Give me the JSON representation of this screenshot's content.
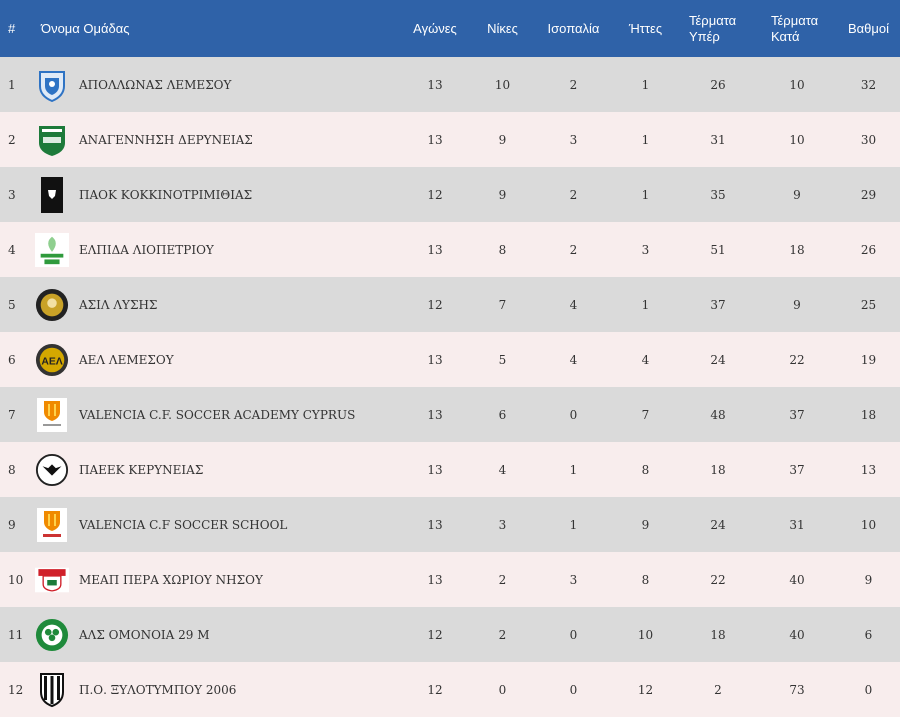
{
  "headers": {
    "pos": "#",
    "team": "Όνομα Ομάδας",
    "played": "Αγώνες",
    "wins": "Νίκες",
    "draws": "Ισοπαλία",
    "losses": "Ήττες",
    "gf": [
      "Τέρματα",
      "Υπέρ"
    ],
    "ga": [
      "Τέρματα",
      "Κατά"
    ],
    "points": "Βαθμοί"
  },
  "rows": [
    {
      "pos": "1",
      "team": "ΑΠΟΛΛΩΝΑΣ ΛΕΜΕΣΟΥ",
      "played": "13",
      "wins": "10",
      "draws": "2",
      "losses": "1",
      "gf": "26",
      "ga": "10",
      "points": "32",
      "logo": "apollon-crest-icon",
      "color": "#2e73c4"
    },
    {
      "pos": "2",
      "team": "ΑΝΑΓΕΝΝΗΣΗ ΔΕΡΥΝΕΙΑΣ",
      "played": "13",
      "wins": "9",
      "draws": "3",
      "losses": "1",
      "gf": "31",
      "ga": "10",
      "points": "30",
      "logo": "anagennisi-crest-icon",
      "color": "#1d7a3a"
    },
    {
      "pos": "3",
      "team": "ΠΑΟΚ ΚΟΚΚΙΝΟΤΡΙΜΙΘΙΑΣ",
      "played": "12",
      "wins": "9",
      "draws": "2",
      "losses": "1",
      "gf": "35",
      "ga": "9",
      "points": "29",
      "logo": "paok-crest-icon",
      "color": "#111111"
    },
    {
      "pos": "4",
      "team": "ΕΛΠΙΔΑ ΛΙΟΠΕΤΡΙΟΥ",
      "played": "13",
      "wins": "8",
      "draws": "2",
      "losses": "3",
      "gf": "51",
      "ga": "18",
      "points": "26",
      "logo": "elpida-crest-icon",
      "color": "#2f9a3c"
    },
    {
      "pos": "5",
      "team": "ΑΣΙΛ ΛΥΣΗΣ",
      "played": "12",
      "wins": "7",
      "draws": "4",
      "losses": "1",
      "gf": "37",
      "ga": "9",
      "points": "25",
      "logo": "asil-crest-icon",
      "color": "#c9a227"
    },
    {
      "pos": "6",
      "team": "ΑΕΛ ΛΕΜΕΣΟΥ",
      "played": "13",
      "wins": "5",
      "draws": "4",
      "losses": "4",
      "gf": "24",
      "ga": "22",
      "points": "19",
      "logo": "ael-crest-icon",
      "color": "#d4a800"
    },
    {
      "pos": "7",
      "team": "VALENCIA C.F. SOCCER ACADEMY CYPRUS",
      "played": "13",
      "wins": "6",
      "draws": "0",
      "losses": "7",
      "gf": "48",
      "ga": "37",
      "points": "18",
      "logo": "valencia-crest-icon",
      "color": "#f08a00"
    },
    {
      "pos": "8",
      "team": "ΠΑΕΕΚ ΚΕΡΥΝΕΙΑΣ",
      "played": "13",
      "wins": "4",
      "draws": "1",
      "losses": "8",
      "gf": "18",
      "ga": "37",
      "points": "13",
      "logo": "paeek-crest-icon",
      "color": "#111111"
    },
    {
      "pos": "9",
      "team": "VALENCIA C.F SOCCER SCHOOL",
      "played": "13",
      "wins": "3",
      "draws": "1",
      "losses": "9",
      "gf": "24",
      "ga": "31",
      "points": "10",
      "logo": "valencia-school-crest-icon",
      "color": "#f08a00"
    },
    {
      "pos": "10",
      "team": "ΜΕΑΠ ΠΕΡΑ ΧΩΡΙΟΥ ΝΗΣΟΥ",
      "played": "13",
      "wins": "2",
      "draws": "3",
      "losses": "8",
      "gf": "22",
      "ga": "40",
      "points": "9",
      "logo": "meap-crest-icon",
      "color": "#d0202a"
    },
    {
      "pos": "11",
      "team": "ΑΛΣ ΟΜΟΝΟΙΑ 29 Μ",
      "played": "12",
      "wins": "2",
      "draws": "0",
      "losses": "10",
      "gf": "18",
      "ga": "40",
      "points": "6",
      "logo": "omonia-crest-icon",
      "color": "#1f8a3b"
    },
    {
      "pos": "12",
      "team": "Π.Ο. ΞΥΛΟΤΥΜΠΟΥ 2006",
      "played": "12",
      "wins": "0",
      "draws": "0",
      "losses": "12",
      "gf": "2",
      "ga": "73",
      "points": "0",
      "logo": "xylotymbou-crest-icon",
      "color": "#111111"
    }
  ],
  "colors": {
    "header": "#2f62a8",
    "row_odd": "#dadada",
    "row_even": "#f8eded"
  }
}
